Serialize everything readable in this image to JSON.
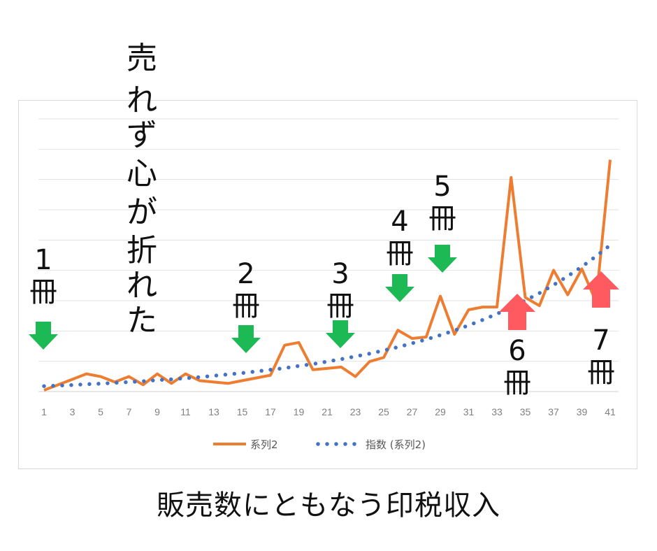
{
  "caption": "販売数にともなう印税収入",
  "chart_data": {
    "type": "line",
    "title": "",
    "xlabel": "",
    "ylabel": "",
    "x": [
      1,
      2,
      3,
      4,
      5,
      6,
      7,
      8,
      9,
      10,
      11,
      12,
      13,
      14,
      15,
      16,
      17,
      18,
      19,
      20,
      21,
      22,
      23,
      24,
      25,
      26,
      27,
      28,
      29,
      30,
      31,
      32,
      33,
      34,
      35,
      36,
      37,
      38,
      39,
      40,
      41
    ],
    "x_tick_labels": [
      "1",
      "3",
      "5",
      "7",
      "9",
      "11",
      "13",
      "15",
      "17",
      "19",
      "21",
      "23",
      "25",
      "27",
      "29",
      "31",
      "33",
      "35",
      "37",
      "39",
      "41"
    ],
    "ylim": [
      0,
      10
    ],
    "grid": true,
    "y_tick_labels_shown": false,
    "legend": "bottom",
    "series": [
      {
        "name": "系列2",
        "color": "#ED7D31",
        "style": "solid",
        "values": [
          0.05,
          0.25,
          0.45,
          0.65,
          0.55,
          0.35,
          0.55,
          0.25,
          0.65,
          0.3,
          0.65,
          0.4,
          0.35,
          0.3,
          0.4,
          0.5,
          0.6,
          1.7,
          1.8,
          0.8,
          0.85,
          0.9,
          0.55,
          1.1,
          1.25,
          2.25,
          1.95,
          2.0,
          3.5,
          2.1,
          3.0,
          3.1,
          3.1,
          7.85,
          3.45,
          3.15,
          4.45,
          3.55,
          4.5,
          3.3,
          8.5
        ]
      },
      {
        "name": "指数 (系列2)",
        "color": "#4472C4",
        "style": "dotted",
        "values": [
          0.2,
          0.22,
          0.24,
          0.27,
          0.29,
          0.32,
          0.35,
          0.38,
          0.42,
          0.45,
          0.49,
          0.53,
          0.58,
          0.63,
          0.68,
          0.74,
          0.8,
          0.86,
          0.94,
          1.01,
          1.1,
          1.19,
          1.29,
          1.39,
          1.51,
          1.63,
          1.77,
          1.91,
          2.07,
          2.24,
          2.43,
          2.63,
          2.85,
          3.08,
          3.34,
          3.61,
          3.91,
          4.23,
          4.58,
          4.96,
          5.37
        ]
      }
    ],
    "annotations": {
      "vertical_text": "売れず心が折れた",
      "book_labels": [
        {
          "text": "1冊",
          "x": 1,
          "arrow": "down",
          "arrow_color": "#1DB954"
        },
        {
          "text": "2冊",
          "x": 15,
          "arrow": "down",
          "arrow_color": "#1DB954"
        },
        {
          "text": "3冊",
          "x": 22,
          "arrow": "down",
          "arrow_color": "#1DB954"
        },
        {
          "text": "4冊",
          "x": 26,
          "arrow": "down",
          "arrow_color": "#1DB954"
        },
        {
          "text": "5冊",
          "x": 29,
          "arrow": "down",
          "arrow_color": "#1DB954"
        },
        {
          "text": "6冊",
          "x": 34,
          "arrow": "up",
          "arrow_color": "#FF5A5F"
        },
        {
          "text": "7冊",
          "x": 40,
          "arrow": "up",
          "arrow_color": "#FF5A5F"
        }
      ]
    }
  }
}
